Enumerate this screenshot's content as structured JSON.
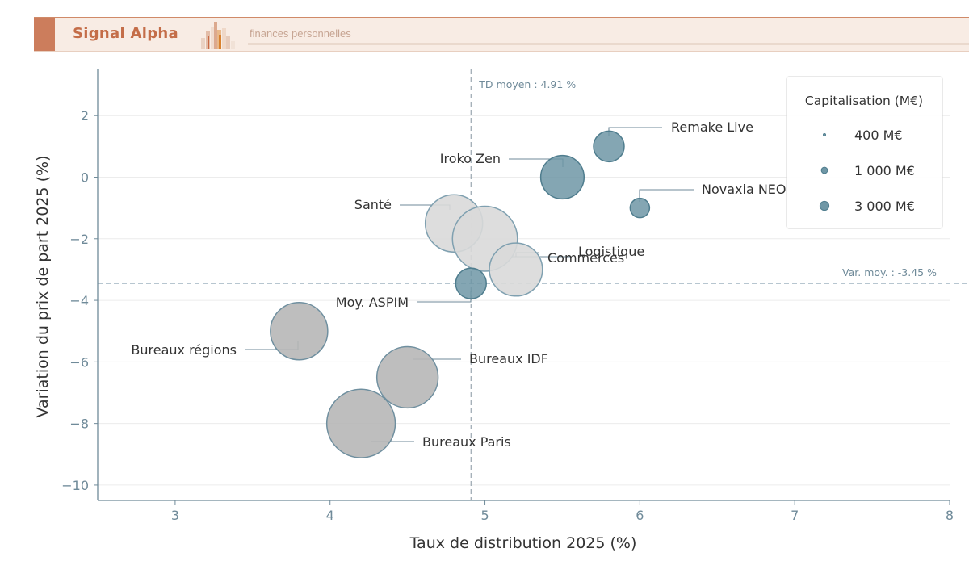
{
  "header": {
    "brand": "Signal Alpha",
    "tagline": "finances personnelles"
  },
  "colors": {
    "accent": "#cc7d5c",
    "axis": "#6f8a99",
    "blue_bubble": "#6f97a6",
    "light_bubble": "#d9d9d9",
    "grey_bubble": "#b7b7b7"
  },
  "chart_data": {
    "type": "scatter",
    "xlabel": "Taux de distribution 2025 (%)",
    "ylabel": "Variation du prix de part 2025 (%)",
    "xlim": [
      2.5,
      8
    ],
    "ylim": [
      -10.5,
      3.5
    ],
    "xticks": [
      3,
      4,
      5,
      6,
      7,
      8
    ],
    "yticks": [
      2,
      0,
      -2,
      -4,
      -6,
      -8,
      -10
    ],
    "ytick_labels": [
      "2",
      "0",
      "−2",
      "−4",
      "−6",
      "−8",
      "−10"
    ],
    "grid": true,
    "ref_lines": {
      "x_value": 4.91,
      "x_label": "TD moyen : 4.91 %",
      "y_value": -3.45,
      "y_label": "Var. moy. : -3.45 %"
    },
    "points": [
      {
        "name": "Remake Live",
        "x": 5.8,
        "y": 1.0,
        "cap": 1000,
        "group": "blue"
      },
      {
        "name": "Iroko Zen",
        "x": 5.5,
        "y": 0.0,
        "cap": 2000,
        "group": "blue"
      },
      {
        "name": "Novaxia NEO",
        "x": 6.0,
        "y": -1.0,
        "cap": 400,
        "group": "blue"
      },
      {
        "name": "Santé",
        "x": 4.8,
        "y": -1.5,
        "cap": 3500,
        "group": "light"
      },
      {
        "name": "Logistique",
        "x": 5.0,
        "y": -2.0,
        "cap": 4500,
        "group": "light"
      },
      {
        "name": "Commerces",
        "x": 5.2,
        "y": -3.0,
        "cap": 3000,
        "group": "light"
      },
      {
        "name": "Moy. ASPIM",
        "x": 4.91,
        "y": -3.45,
        "cap": 1000,
        "group": "blue"
      },
      {
        "name": "Bureaux régions",
        "x": 3.8,
        "y": -5.0,
        "cap": 3500,
        "group": "grey"
      },
      {
        "name": "Bureaux IDF",
        "x": 4.5,
        "y": -6.5,
        "cap": 4000,
        "group": "grey"
      },
      {
        "name": "Bureaux Paris",
        "x": 4.2,
        "y": -8.0,
        "cap": 5000,
        "group": "grey"
      }
    ],
    "legend": {
      "title": "Capitalisation (M€)",
      "position": "top-right",
      "items": [
        {
          "label": "400 M€",
          "cap": 400
        },
        {
          "label": "1 000 M€",
          "cap": 1000
        },
        {
          "label": "3 000 M€",
          "cap": 3000
        }
      ]
    }
  }
}
